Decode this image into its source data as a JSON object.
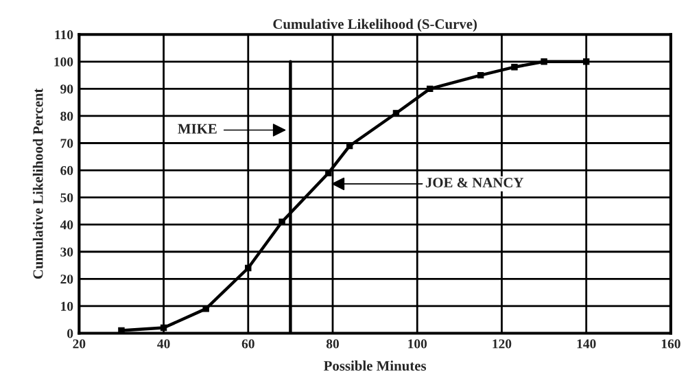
{
  "chart_data": {
    "type": "line",
    "title": "Cumulative Likelihood (S-Curve)",
    "xlabel": "Possible Minutes",
    "ylabel": "Cumulative Likelihood Percent",
    "series": [
      {
        "color": "#000000",
        "marker": "square",
        "x": [
          30,
          40,
          50,
          60,
          68,
          79,
          84,
          95,
          103,
          115,
          123,
          130,
          140
        ],
        "values": [
          1,
          2,
          9,
          24,
          41,
          59,
          69,
          81,
          90,
          95,
          98,
          100,
          100
        ]
      },
      {
        "color": "#000000",
        "marker": "none",
        "x": [
          70,
          70
        ],
        "values": [
          0,
          100
        ]
      }
    ],
    "annotations": [
      "MIKE",
      "JOE & NANCY"
    ],
    "xlim": [
      20,
      160
    ],
    "xticks": [
      20,
      40,
      60,
      80,
      100,
      120,
      140,
      160
    ],
    "ylim": [
      0,
      110
    ],
    "yticks": [
      0,
      10,
      20,
      30,
      40,
      50,
      60,
      70,
      80,
      90,
      100,
      110
    ],
    "grid": true,
    "legend": false,
    "line_style": "solid"
  }
}
